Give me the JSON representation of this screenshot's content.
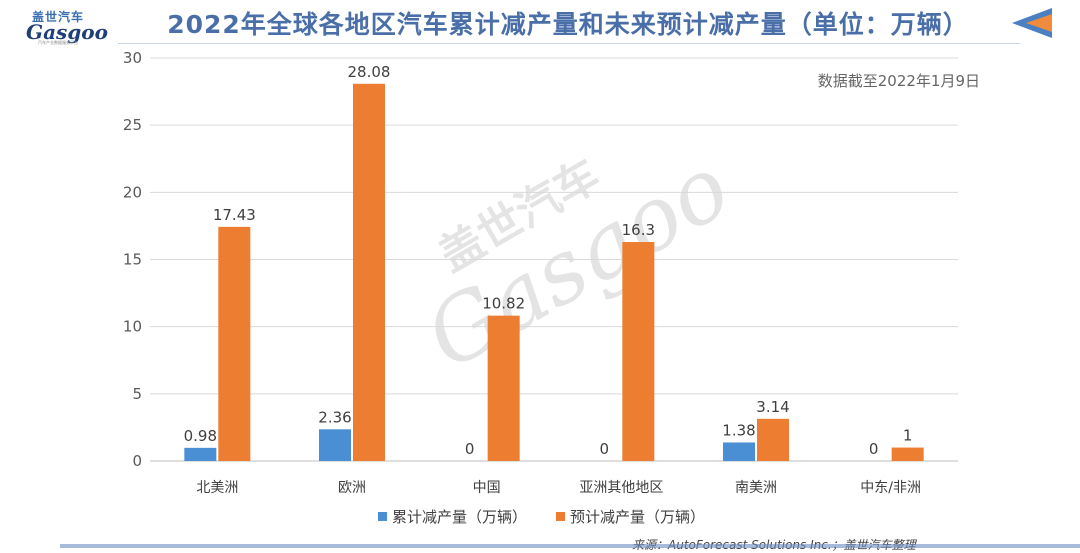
{
  "logo": {
    "cn": "盖世汽车",
    "en": "Gasgoo",
    "sub": "汽车产业数据服务平台"
  },
  "header": {
    "title": "2022年全球各地区汽车累计减产量和未来预计减产量（单位：万辆）"
  },
  "note": {
    "date": "数据截至2022年1月9日"
  },
  "watermark": {
    "cn": "盖世汽车",
    "en": "Gasgoo"
  },
  "source": {
    "text": "来源：AutoForecast Solutions Inc.；盖世汽车整理"
  },
  "colors": {
    "series1": "#4a8fd4",
    "series2": "#ed7d31",
    "title": "#4a6fa8",
    "grid": "#d9d9d9"
  },
  "chart_data": {
    "type": "bar",
    "categories": [
      "北美洲",
      "欧洲",
      "中国",
      "亚洲其他地区",
      "南美洲",
      "中东/非洲"
    ],
    "series": [
      {
        "name": "累计减产量（万辆）",
        "values": [
          0.98,
          2.36,
          0,
          0,
          1.38,
          0
        ],
        "labels": [
          "0.98",
          "2.36",
          "0",
          "0",
          "1.38",
          "0"
        ]
      },
      {
        "name": "预计减产量（万辆）",
        "values": [
          17.43,
          28.08,
          10.82,
          16.3,
          3.14,
          1
        ],
        "labels": [
          "17.43",
          "28.08",
          "10.82",
          "16.3",
          "3.14",
          "1"
        ]
      }
    ],
    "yticks": [
      "0",
      "5",
      "10",
      "15",
      "20",
      "25",
      "30"
    ],
    "ylim": [
      0,
      30
    ],
    "grid": true,
    "legend": "bottom"
  }
}
